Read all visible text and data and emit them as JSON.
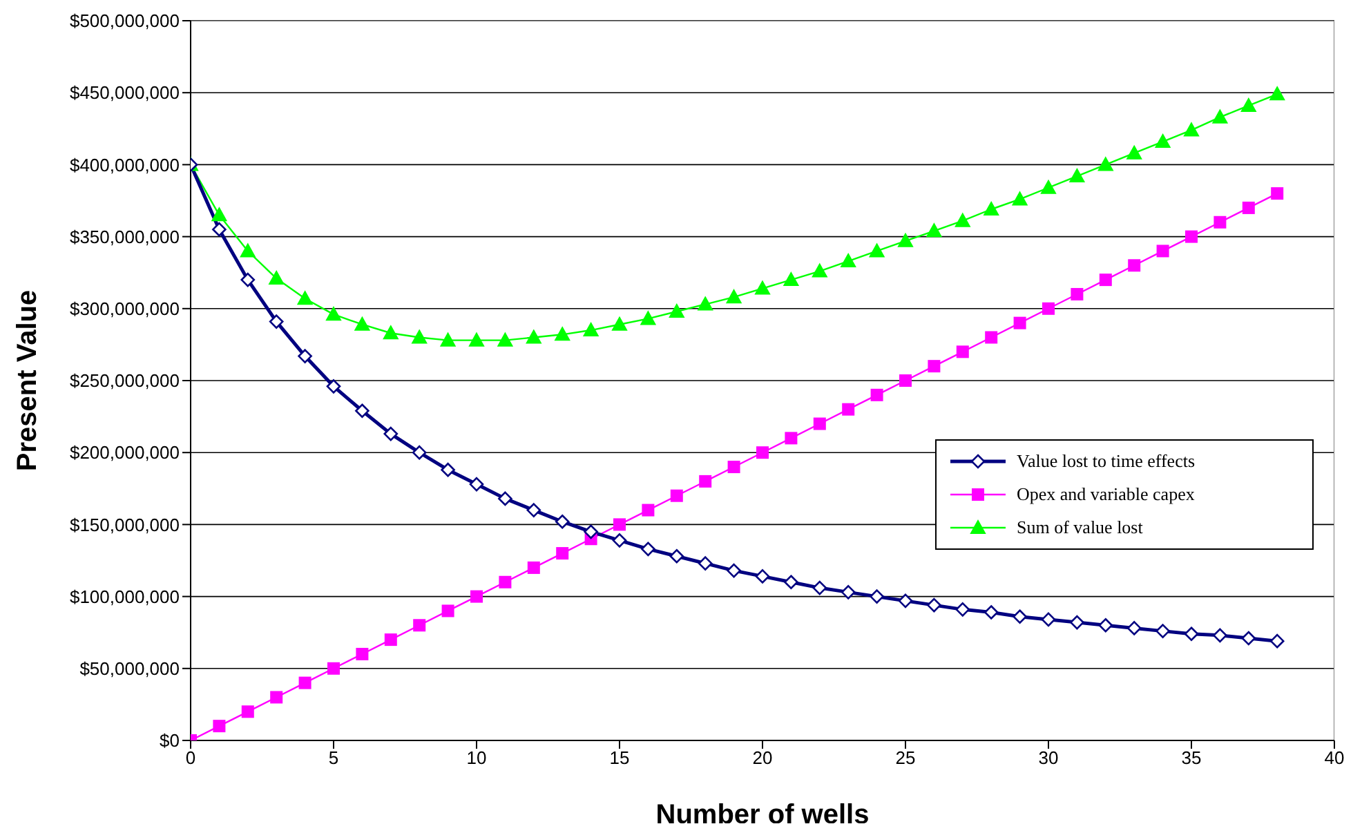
{
  "chart_data": {
    "type": "line",
    "xlabel": "Number of wells",
    "ylabel": "Present Value",
    "x": [
      0,
      1,
      2,
      3,
      4,
      5,
      6,
      7,
      8,
      9,
      10,
      11,
      12,
      13,
      14,
      15,
      16,
      17,
      18,
      19,
      20,
      21,
      22,
      23,
      24,
      25,
      26,
      27,
      28,
      29,
      30,
      31,
      32,
      33,
      34,
      35,
      36,
      37,
      38
    ],
    "series": [
      {
        "name": "Value lost to time effects",
        "color": "#000080",
        "marker": "diamond",
        "values": [
          400000000,
          355000000,
          320000000,
          291000000,
          267000000,
          246000000,
          229000000,
          213000000,
          200000000,
          188000000,
          178000000,
          168000000,
          160000000,
          152000000,
          145000000,
          139000000,
          133000000,
          128000000,
          123000000,
          118000000,
          114000000,
          110000000,
          106000000,
          103000000,
          100000000,
          97000000,
          94000000,
          91000000,
          89000000,
          86000000,
          84000000,
          82000000,
          80000000,
          78000000,
          76000000,
          74000000,
          73000000,
          71000000,
          69000000
        ]
      },
      {
        "name": "Opex and variable capex",
        "color": "#ff00ff",
        "marker": "square",
        "values": [
          0,
          10000000,
          20000000,
          30000000,
          40000000,
          50000000,
          60000000,
          70000000,
          80000000,
          90000000,
          100000000,
          110000000,
          120000000,
          130000000,
          140000000,
          150000000,
          160000000,
          170000000,
          180000000,
          190000000,
          200000000,
          210000000,
          220000000,
          230000000,
          240000000,
          250000000,
          260000000,
          270000000,
          280000000,
          290000000,
          300000000,
          310000000,
          320000000,
          330000000,
          340000000,
          350000000,
          360000000,
          370000000,
          380000000
        ]
      },
      {
        "name": "Sum of value lost",
        "color": "#00ff00",
        "marker": "triangle",
        "values": [
          400000000,
          365000000,
          340000000,
          321000000,
          307000000,
          296000000,
          289000000,
          283000000,
          280000000,
          278000000,
          278000000,
          278000000,
          280000000,
          282000000,
          285000000,
          289000000,
          293000000,
          298000000,
          303000000,
          308000000,
          314000000,
          320000000,
          326000000,
          333000000,
          340000000,
          347000000,
          354000000,
          361000000,
          369000000,
          376000000,
          384000000,
          392000000,
          400000000,
          408000000,
          416000000,
          424000000,
          433000000,
          441000000,
          449000000
        ]
      }
    ],
    "xlim": [
      0,
      40
    ],
    "xticks": [
      0,
      5,
      10,
      15,
      20,
      25,
      30,
      35,
      40
    ],
    "ylim": [
      0,
      500000000
    ],
    "yticks": [
      {
        "value": 0,
        "label": "$0"
      },
      {
        "value": 50000000,
        "label": "$50,000,000"
      },
      {
        "value": 100000000,
        "label": "$100,000,000"
      },
      {
        "value": 150000000,
        "label": "$150,000,000"
      },
      {
        "value": 200000000,
        "label": "$200,000,000"
      },
      {
        "value": 250000000,
        "label": "$250,000,000"
      },
      {
        "value": 300000000,
        "label": "$300,000,000"
      },
      {
        "value": 350000000,
        "label": "$350,000,000"
      },
      {
        "value": 400000000,
        "label": "$400,000,000"
      },
      {
        "value": 450000000,
        "label": "$450,000,000"
      },
      {
        "value": 500000000,
        "label": "$500,000,000"
      }
    ],
    "grid": "y",
    "legend": "right"
  }
}
